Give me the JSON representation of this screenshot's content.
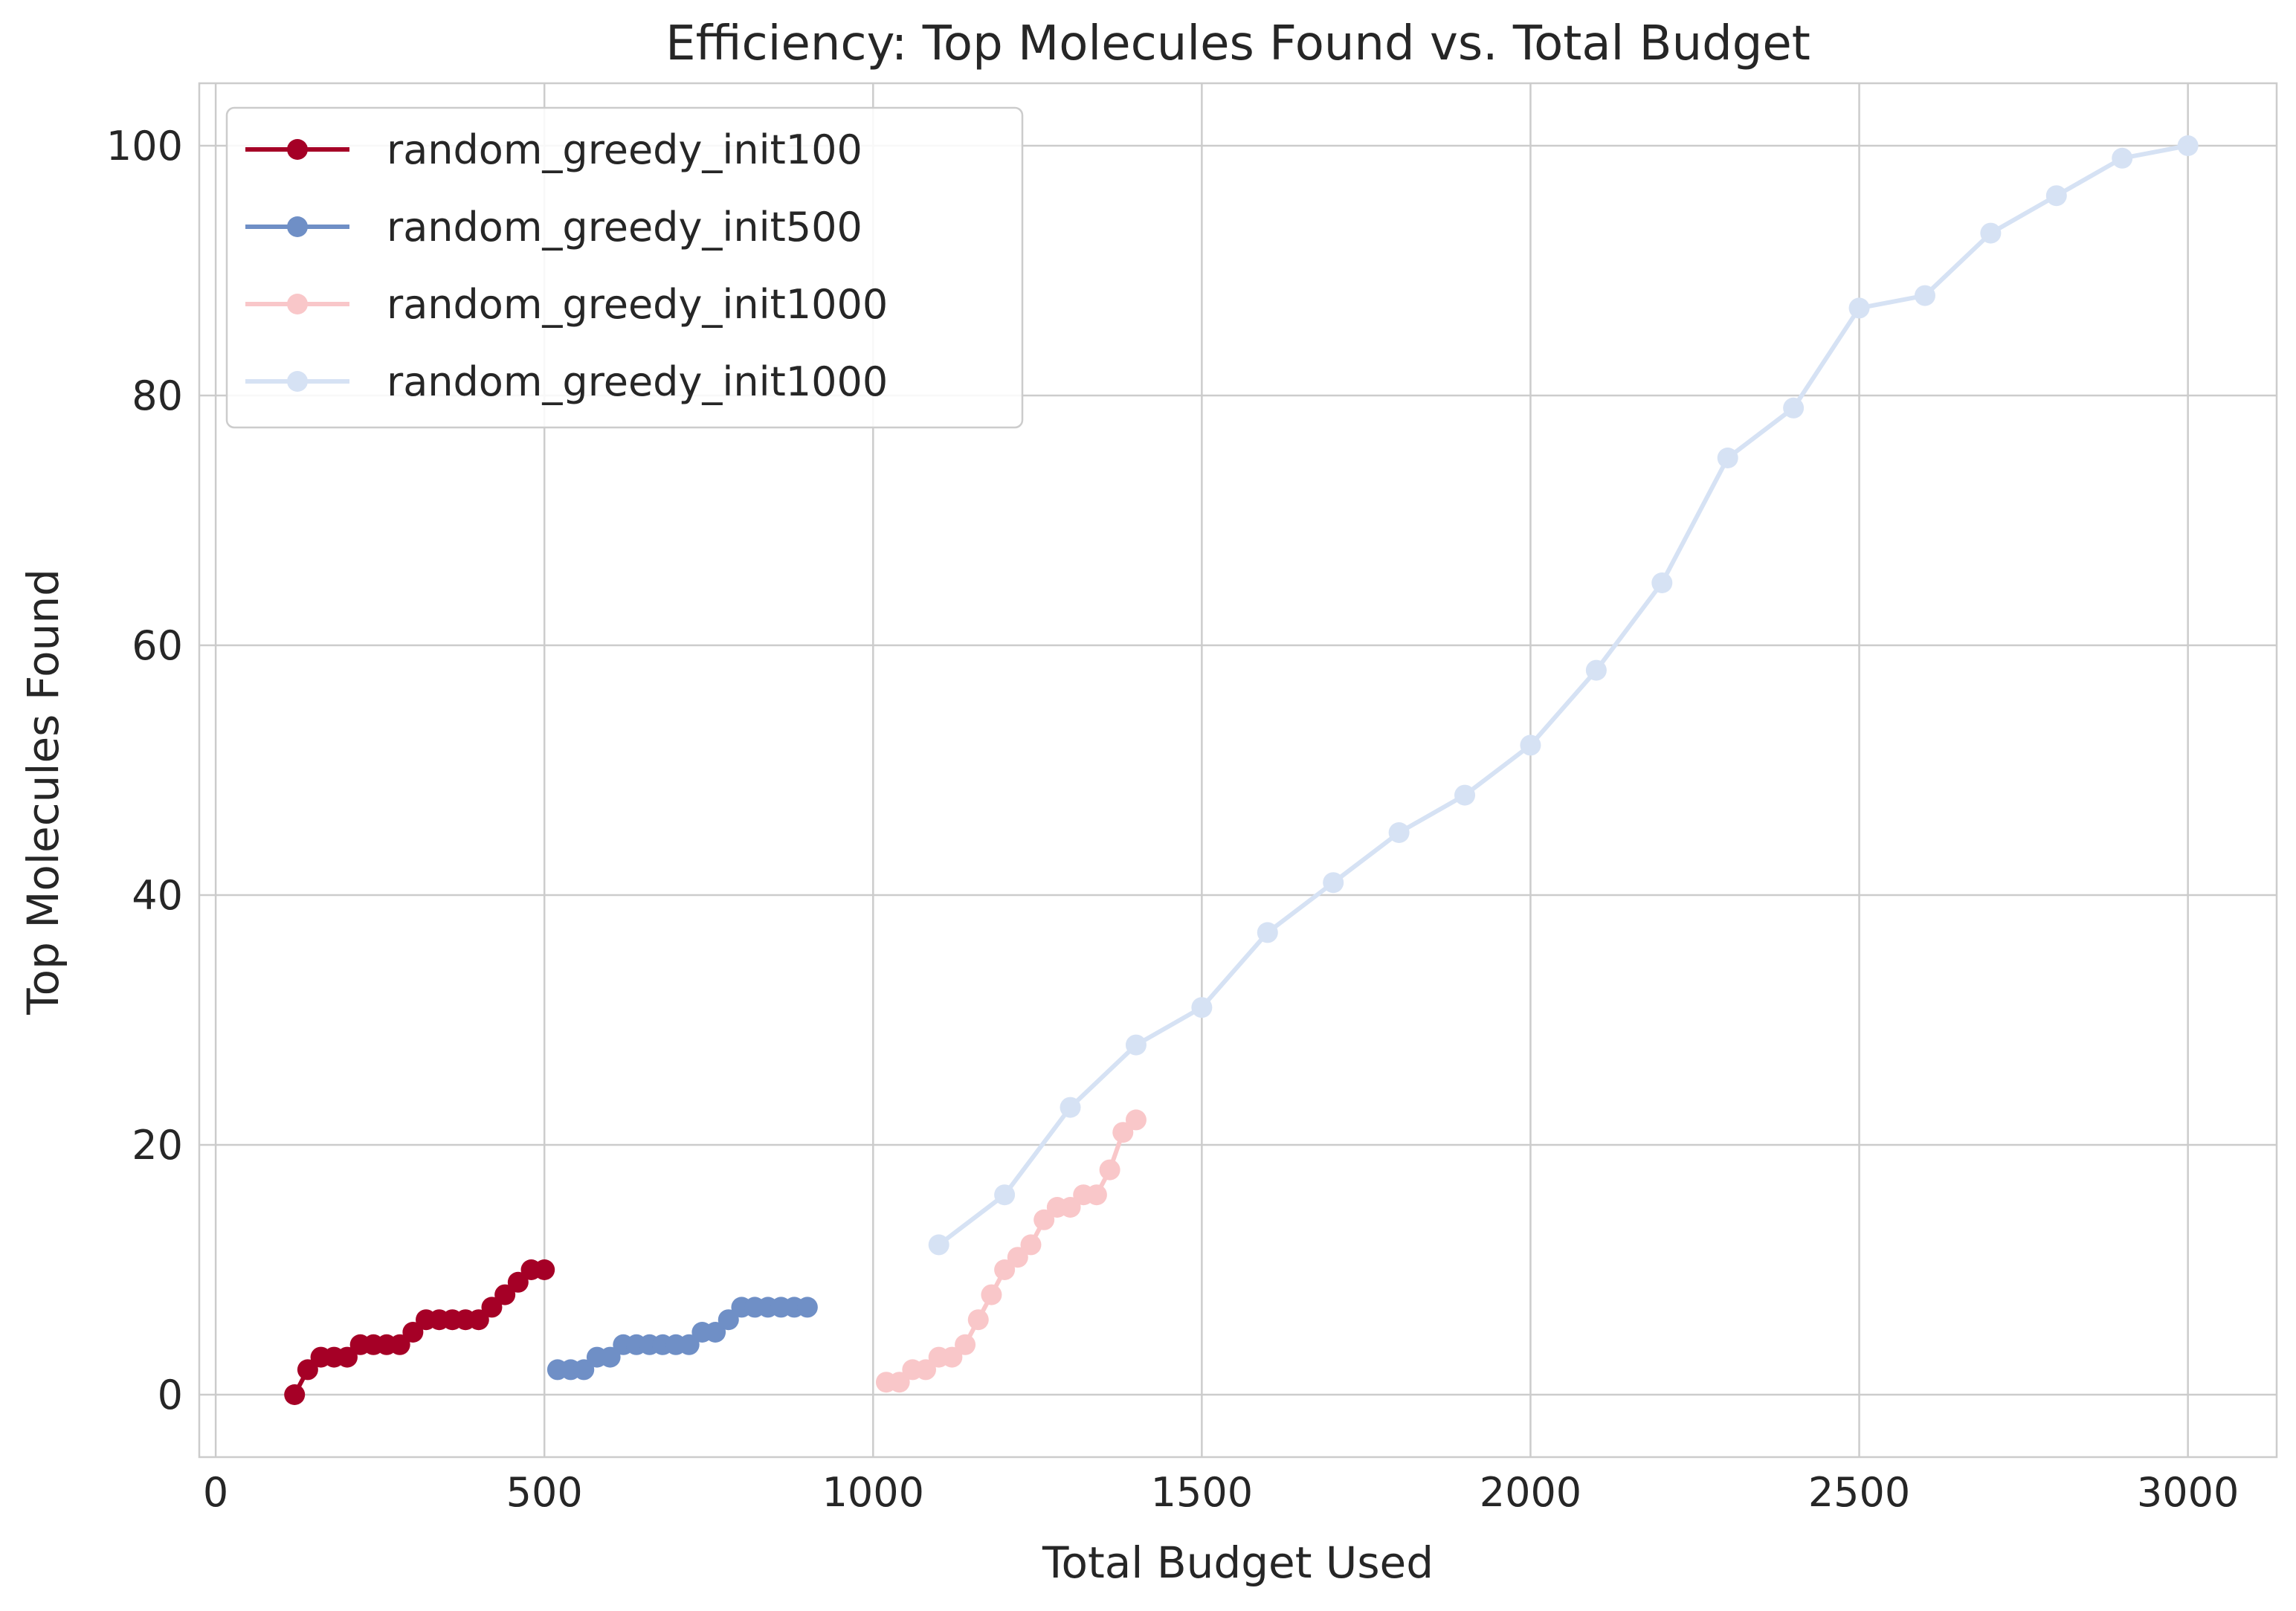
{
  "chart_data": {
    "type": "line",
    "title": "Efficiency: Top Molecules Found vs. Total Budget",
    "xlabel": "Total Budget Used",
    "ylabel": "Top Molecules Found",
    "xlim": [
      -25,
      3135
    ],
    "ylim": [
      -5,
      105
    ],
    "xticks": [
      0,
      500,
      1000,
      1500,
      2000,
      2500,
      3000
    ],
    "yticks": [
      0,
      20,
      40,
      60,
      80,
      100
    ],
    "grid": true,
    "legend_position": "upper-left",
    "series": [
      {
        "name": "random_greedy_init100",
        "color": "#a50026",
        "x": [
          120,
          140,
          160,
          180,
          200,
          220,
          240,
          260,
          280,
          300,
          320,
          340,
          360,
          380,
          400,
          420,
          440,
          460,
          480,
          500
        ],
        "y": [
          0,
          2,
          3,
          3,
          3,
          4,
          4,
          4,
          4,
          5,
          6,
          6,
          6,
          6,
          6,
          7,
          8,
          9,
          10,
          10
        ]
      },
      {
        "name": "random_greedy_init500",
        "color": "#6f8fc6",
        "x": [
          520,
          540,
          560,
          580,
          600,
          620,
          640,
          660,
          680,
          700,
          720,
          740,
          760,
          780,
          800,
          820,
          840,
          860,
          880,
          900
        ],
        "y": [
          2,
          2,
          2,
          3,
          3,
          4,
          4,
          4,
          4,
          4,
          4,
          5,
          5,
          6,
          7,
          7,
          7,
          7,
          7,
          7
        ]
      },
      {
        "name": "random_greedy_init1000",
        "color": "#f9c7c9",
        "x": [
          1020,
          1040,
          1060,
          1080,
          1100,
          1120,
          1140,
          1160,
          1180,
          1200,
          1220,
          1240,
          1260,
          1280,
          1300,
          1320,
          1340,
          1360,
          1380,
          1400
        ],
        "y": [
          1,
          1,
          2,
          2,
          3,
          3,
          4,
          6,
          8,
          10,
          11,
          12,
          14,
          15,
          15,
          16,
          16,
          18,
          21,
          22
        ]
      },
      {
        "name": "random_greedy_init1000",
        "color": "#d6e2f4",
        "x": [
          1100,
          1200,
          1300,
          1400,
          1500,
          1600,
          1700,
          1800,
          1900,
          2000,
          2100,
          2200,
          2300,
          2400,
          2500,
          2600,
          2700,
          2800,
          2900,
          3000
        ],
        "y": [
          12,
          16,
          23,
          28,
          31,
          37,
          41,
          45,
          48,
          52,
          58,
          65,
          75,
          79,
          87,
          88,
          93,
          96,
          99,
          100
        ]
      }
    ]
  }
}
